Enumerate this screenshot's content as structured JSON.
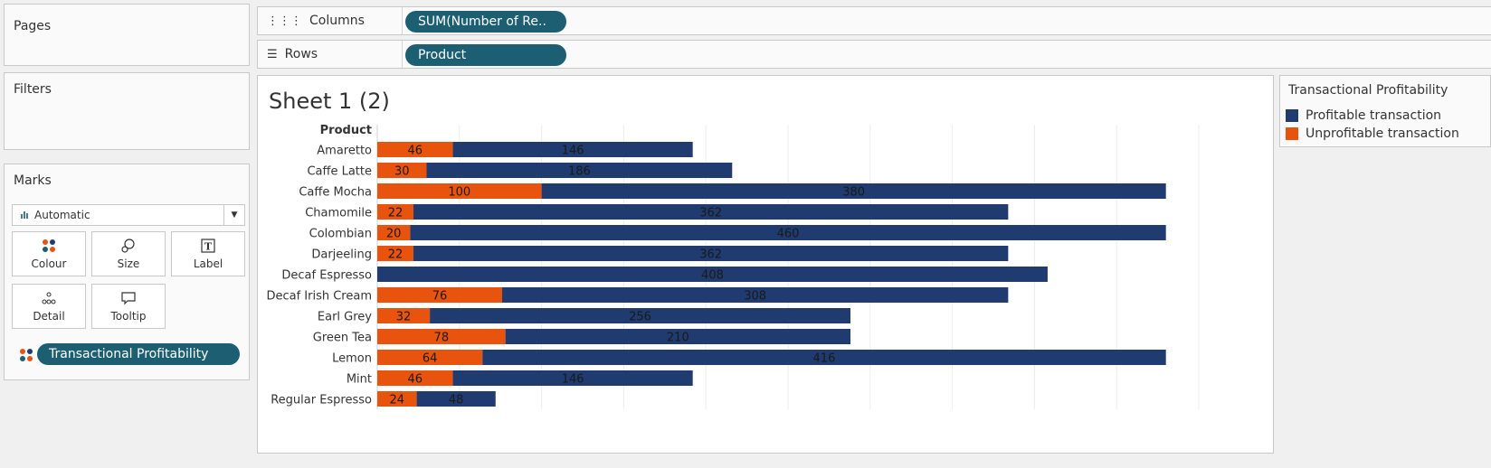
{
  "panels": {
    "pages_label": "Pages",
    "filters_label": "Filters",
    "marks_label": "Marks"
  },
  "shelves": {
    "columns_label": "Columns",
    "columns_pill": "SUM(Number of Re..",
    "rows_label": "Rows",
    "rows_pill": "Product"
  },
  "marks": {
    "mark_type": "Automatic",
    "buttons": [
      "Colour",
      "Size",
      "Label",
      "Detail",
      "Tooltip"
    ],
    "colour_field": "Transactional Profitability"
  },
  "sheet": {
    "title": "Sheet 1 (2)",
    "row_header": "Product"
  },
  "legend": {
    "title": "Transactional Profitability",
    "items": [
      {
        "label": "Profitable transaction",
        "color": "#1f3b6f"
      },
      {
        "label": "Unprofitable transaction",
        "color": "#e8530e"
      }
    ]
  },
  "chart_data": {
    "type": "bar",
    "orientation": "horizontal",
    "stacked": true,
    "categories": [
      "Amaretto",
      "Caffe Latte",
      "Caffe Mocha",
      "Chamomile",
      "Colombian",
      "Darjeeling",
      "Decaf Espresso",
      "Decaf Irish Cream",
      "Earl Grey",
      "Green Tea",
      "Lemon",
      "Mint",
      "Regular Espresso"
    ],
    "series": [
      {
        "name": "Unprofitable transaction",
        "color": "#e8530e",
        "values": [
          46,
          30,
          100,
          22,
          20,
          22,
          0,
          76,
          32,
          78,
          64,
          46,
          24
        ]
      },
      {
        "name": "Profitable transaction",
        "color": "#1f3b6f",
        "values": [
          146,
          186,
          380,
          362,
          460,
          362,
          408,
          308,
          256,
          210,
          416,
          146,
          48
        ]
      }
    ],
    "xlim": [
      0,
      500
    ],
    "grid": true
  }
}
